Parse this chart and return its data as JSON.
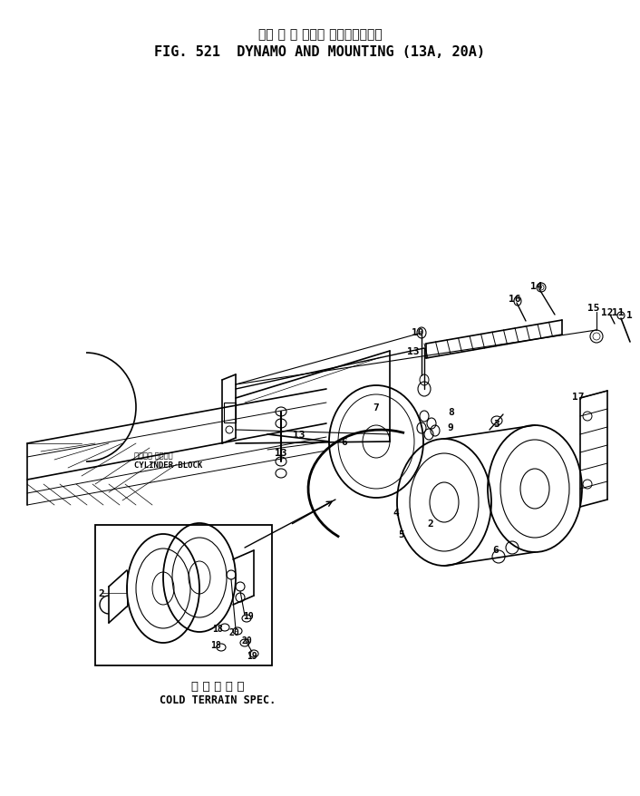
{
  "title_japanese": "ダイ ナ モ および マウンティング",
  "title_english": "FIG. 521  DYNAMO AND MOUNTING (13A, 20A)",
  "bottom_japanese": "寒 冷 地 仕 様",
  "bottom_english": "COLD TERRAIN SPEC.",
  "cylinder_block_japanese": "シリンダ ブロック",
  "cylinder_block_english": "CYLINDER BLOCK",
  "bg_color": "#ffffff",
  "line_color": "#000000",
  "fig_width": 7.06,
  "fig_height": 8.79,
  "dpi": 100
}
